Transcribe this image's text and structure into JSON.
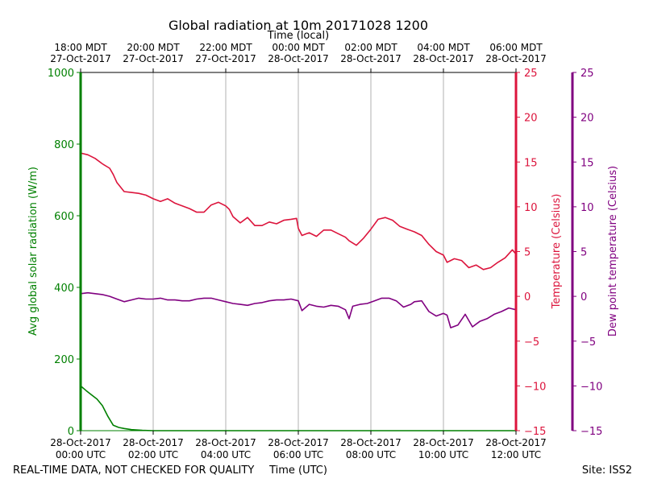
{
  "chart_data": {
    "type": "line",
    "title": "Global radiation at 10m 20171028 1200",
    "xlabel_top": "Time (local)",
    "xlabel_bottom": "Time (UTC)",
    "x_unit": "hours since 28-Oct-2017 00:00 UTC",
    "xlim": [
      0,
      12
    ],
    "top_ticks": [
      {
        "x": 0,
        "line1": "18:00 MDT",
        "line2": "27-Oct-2017"
      },
      {
        "x": 2,
        "line1": "20:00 MDT",
        "line2": "27-Oct-2017"
      },
      {
        "x": 4,
        "line1": "22:00 MDT",
        "line2": "27-Oct-2017"
      },
      {
        "x": 6,
        "line1": "00:00 MDT",
        "line2": "28-Oct-2017"
      },
      {
        "x": 8,
        "line1": "02:00 MDT",
        "line2": "28-Oct-2017"
      },
      {
        "x": 10,
        "line1": "04:00 MDT",
        "line2": "28-Oct-2017"
      },
      {
        "x": 12,
        "line1": "06:00 MDT",
        "line2": "28-Oct-2017"
      }
    ],
    "bottom_ticks": [
      {
        "x": 0,
        "line1": "28-Oct-2017",
        "line2": "00:00 UTC"
      },
      {
        "x": 2,
        "line1": "28-Oct-2017",
        "line2": "02:00 UTC"
      },
      {
        "x": 4,
        "line1": "28-Oct-2017",
        "line2": "04:00 UTC"
      },
      {
        "x": 6,
        "line1": "28-Oct-2017",
        "line2": "06:00 UTC"
      },
      {
        "x": 8,
        "line1": "28-Oct-2017",
        "line2": "08:00 UTC"
      },
      {
        "x": 10,
        "line1": "28-Oct-2017",
        "line2": "10:00 UTC"
      },
      {
        "x": 12,
        "line1": "28-Oct-2017",
        "line2": "12:00 UTC"
      }
    ],
    "axes": {
      "radiation": {
        "label": "Avg global solar radiation (W/m)",
        "ylim": [
          0,
          1000
        ],
        "ticks": [
          0,
          200,
          400,
          600,
          800,
          1000
        ],
        "color": "#008000"
      },
      "temperature": {
        "label": "Temperature (Celsius)",
        "ylim": [
          -15,
          25
        ],
        "ticks": [
          -15,
          -10,
          -5,
          0,
          5,
          10,
          15,
          20,
          25
        ],
        "color": "#dc143c"
      },
      "dewpoint": {
        "label": "Dew point temperature (Celsius)",
        "ylim": [
          -15,
          25
        ],
        "ticks": [
          -15,
          -10,
          -5,
          0,
          5,
          10,
          15,
          20,
          25
        ],
        "color": "#800080"
      }
    },
    "series": [
      {
        "name": "Global radiation",
        "axis": "radiation",
        "color": "#008000",
        "x": [
          0,
          0.15,
          0.3,
          0.45,
          0.6,
          0.75,
          0.9,
          1.05,
          1.2,
          1.4,
          1.7,
          2.0,
          3.0,
          4.0,
          5.0,
          6.0,
          7.0,
          8.0,
          9.0,
          10.0,
          11.0,
          12.0
        ],
        "values": [
          125,
          112,
          100,
          88,
          70,
          40,
          15,
          9,
          6,
          3,
          1,
          0,
          0,
          0,
          0,
          0,
          0,
          0,
          0,
          0,
          0,
          0
        ]
      },
      {
        "name": "Temperature",
        "axis": "temperature",
        "color": "#dc143c",
        "x": [
          0,
          0.2,
          0.4,
          0.6,
          0.8,
          0.9,
          1.0,
          1.2,
          1.4,
          1.6,
          1.8,
          2.0,
          2.2,
          2.4,
          2.6,
          2.8,
          3.0,
          3.2,
          3.4,
          3.6,
          3.8,
          4.0,
          4.1,
          4.2,
          4.4,
          4.6,
          4.8,
          5.0,
          5.2,
          5.4,
          5.6,
          5.8,
          5.95,
          6.0,
          6.1,
          6.3,
          6.5,
          6.7,
          6.9,
          7.1,
          7.3,
          7.4,
          7.6,
          7.8,
          8.0,
          8.2,
          8.4,
          8.6,
          8.8,
          9.0,
          9.2,
          9.4,
          9.6,
          9.8,
          10.0,
          10.1,
          10.3,
          10.5,
          10.7,
          10.9,
          11.1,
          11.3,
          11.5,
          11.7,
          11.9,
          12.0
        ],
        "values": [
          16.0,
          15.8,
          15.4,
          14.8,
          14.3,
          13.6,
          12.7,
          11.7,
          11.6,
          11.5,
          11.3,
          10.9,
          10.6,
          10.9,
          10.4,
          10.1,
          9.8,
          9.4,
          9.4,
          10.2,
          10.5,
          10.1,
          9.7,
          8.9,
          8.2,
          8.8,
          7.9,
          7.9,
          8.3,
          8.1,
          8.5,
          8.6,
          8.7,
          7.6,
          6.8,
          7.1,
          6.7,
          7.4,
          7.4,
          7.0,
          6.6,
          6.2,
          5.7,
          6.5,
          7.5,
          8.6,
          8.8,
          8.5,
          7.8,
          7.5,
          7.2,
          6.8,
          5.8,
          5.0,
          4.6,
          3.8,
          4.2,
          4.0,
          3.2,
          3.5,
          3.0,
          3.2,
          3.8,
          4.3,
          5.2,
          4.7
        ]
      },
      {
        "name": "Dew point",
        "axis": "dewpoint",
        "color": "#800080",
        "x": [
          0,
          0.2,
          0.4,
          0.6,
          0.8,
          1.0,
          1.2,
          1.4,
          1.6,
          1.8,
          2.0,
          2.2,
          2.4,
          2.6,
          2.8,
          3.0,
          3.2,
          3.4,
          3.6,
          3.8,
          4.0,
          4.2,
          4.4,
          4.6,
          4.8,
          5.0,
          5.2,
          5.4,
          5.6,
          5.8,
          6.0,
          6.1,
          6.3,
          6.5,
          6.7,
          6.9,
          7.1,
          7.3,
          7.4,
          7.5,
          7.7,
          7.9,
          8.1,
          8.3,
          8.5,
          8.7,
          8.9,
          9.1,
          9.2,
          9.4,
          9.6,
          9.8,
          10.0,
          10.1,
          10.2,
          10.4,
          10.6,
          10.8,
          11.0,
          11.2,
          11.4,
          11.6,
          11.8,
          12.0
        ],
        "values": [
          0.3,
          0.4,
          0.3,
          0.2,
          0.0,
          -0.3,
          -0.6,
          -0.4,
          -0.2,
          -0.3,
          -0.3,
          -0.2,
          -0.4,
          -0.4,
          -0.5,
          -0.5,
          -0.3,
          -0.2,
          -0.2,
          -0.4,
          -0.6,
          -0.8,
          -0.9,
          -1.0,
          -0.8,
          -0.7,
          -0.5,
          -0.4,
          -0.4,
          -0.3,
          -0.5,
          -1.6,
          -0.9,
          -1.1,
          -1.2,
          -1.0,
          -1.1,
          -1.5,
          -2.5,
          -1.1,
          -0.9,
          -0.8,
          -0.5,
          -0.2,
          -0.2,
          -0.5,
          -1.2,
          -0.9,
          -0.6,
          -0.5,
          -1.7,
          -2.2,
          -1.9,
          -2.1,
          -3.5,
          -3.2,
          -2.0,
          -3.4,
          -2.8,
          -2.5,
          -2.0,
          -1.7,
          -1.3,
          -1.5
        ]
      }
    ]
  },
  "footer": {
    "quality_note": "REAL-TIME DATA, NOT CHECKED FOR QUALITY",
    "site": "Site: ISS2"
  }
}
